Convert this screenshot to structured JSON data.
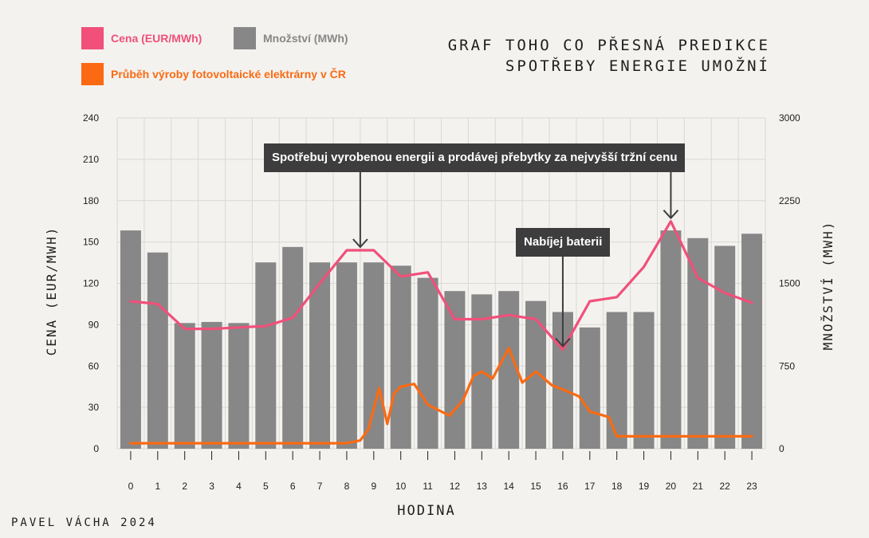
{
  "legend": [
    {
      "label": "Cena (EUR/MWh)",
      "color": "#f0507a"
    },
    {
      "label": "Množství (MWh)",
      "color": "#878787"
    },
    {
      "label": "Průběh výroby fotovoltaické elektrárny v ČR",
      "color": "#fb6a12"
    }
  ],
  "title_line1": "GRAF TOHO CO PŘESNÁ PREDIKCE",
  "title_line2": "SPOTŘEBY ENERGIE UMOŽNÍ",
  "credit": "PAVEL VÁCHA 2024",
  "callouts": {
    "main": "Spotřebuj vyrobenou energii a prodávej přebytky za nejvyšší tržní cenu",
    "battery": "Nabíjej baterii"
  },
  "chart_data": {
    "type": "bar",
    "xlabel": "HODINA",
    "ylabel": "CENA (EUR/MWH)",
    "y2label": "MNOŽSTVÍ (MWH)",
    "categories": [
      "0",
      "1",
      "2",
      "3",
      "4",
      "5",
      "6",
      "7",
      "8",
      "9",
      "10",
      "11",
      "12",
      "13",
      "14",
      "15",
      "16",
      "17",
      "18",
      "19",
      "20",
      "21",
      "22",
      "23"
    ],
    "ylim": [
      0,
      240
    ],
    "y2lim": [
      0,
      3000
    ],
    "yticks": [
      0,
      30,
      60,
      90,
      120,
      150,
      180,
      210,
      240
    ],
    "y2ticks": [
      0,
      750,
      1500,
      2250,
      3000
    ],
    "grid": true,
    "series": [
      {
        "name": "Množství (MWh)",
        "type": "bar",
        "axis": "right",
        "color": "#878787",
        "values": [
          1980,
          1780,
          1140,
          1150,
          1140,
          1690,
          1830,
          1690,
          1690,
          1690,
          1660,
          1550,
          1430,
          1400,
          1430,
          1340,
          1240,
          1100,
          1240,
          1240,
          1980,
          1910,
          1840,
          1950
        ]
      },
      {
        "name": "Cena (EUR/MWh)",
        "type": "line",
        "axis": "left",
        "color": "#f0507a",
        "x": [
          0,
          1,
          2,
          3,
          4,
          5,
          6,
          7,
          8,
          9,
          10,
          11,
          12,
          13,
          14,
          15,
          16,
          17,
          18,
          19,
          20,
          21,
          22,
          23
        ],
        "values": [
          107,
          105,
          87,
          87,
          88,
          89,
          95,
          120,
          144,
          144,
          125,
          128,
          94,
          94,
          97,
          94,
          72,
          107,
          110,
          132,
          165,
          124,
          113,
          106
        ]
      },
      {
        "name": "Průběh výroby fotovoltaické elektrárny v ČR",
        "type": "line",
        "axis": "left",
        "color": "#fb6a12",
        "x": [
          0,
          1,
          2,
          3,
          4,
          5,
          6,
          7,
          8,
          8.5,
          8.8,
          9.2,
          9.5,
          9.75,
          10,
          10.5,
          11,
          11.8,
          12.3,
          12.7,
          13,
          13.4,
          14,
          14.5,
          15,
          15.6,
          16,
          16.6,
          17,
          17.7,
          18,
          18.3,
          19,
          20,
          21,
          22,
          23
        ],
        "values": [
          4,
          4,
          4,
          4,
          4,
          4,
          4,
          4,
          4,
          6,
          14,
          44,
          18,
          40,
          45,
          47,
          32,
          24,
          35,
          53,
          56,
          51,
          73,
          48,
          56,
          46,
          43,
          38,
          27,
          23,
          9,
          9,
          9,
          9,
          9,
          9,
          9
        ]
      }
    ],
    "annotations": [
      {
        "text": "Spotřebuj vyrobenou energii a prodávej přebytky za nejvyšší tržní cenu",
        "arrows_to_hours": [
          8.5,
          20
        ]
      },
      {
        "text": "Nabíjej baterii",
        "arrows_to_hours": [
          16
        ]
      }
    ]
  }
}
